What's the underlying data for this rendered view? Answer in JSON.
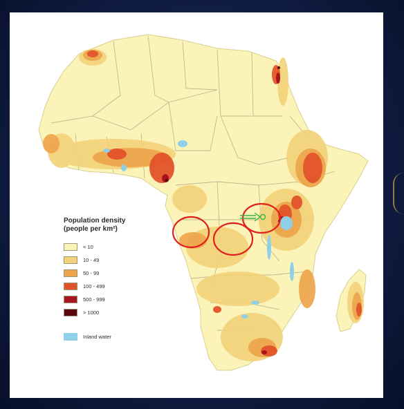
{
  "legend": {
    "title_line1": "Population density",
    "title_line2": "(people per km²)",
    "items": [
      {
        "label": "< 10",
        "color": "#fbf3b8"
      },
      {
        "label": "10 - 49",
        "color": "#f3d27a"
      },
      {
        "label": "50 - 99",
        "color": "#eda44a"
      },
      {
        "label": "100 - 499",
        "color": "#e2532a"
      },
      {
        "label": "500 - 999",
        "color": "#a8141e"
      },
      {
        "label": "> 1000",
        "color": "#5a0712"
      }
    ],
    "water": {
      "label": "Inland water",
      "color": "#8fd0e8"
    }
  },
  "colors": {
    "land": "#fbf3b8",
    "border": "#bdb98e",
    "water": "#8fd0e8",
    "annotation_red": "#e0201a",
    "annotation_green": "#39b54a",
    "slide_background": "#101d44"
  }
}
